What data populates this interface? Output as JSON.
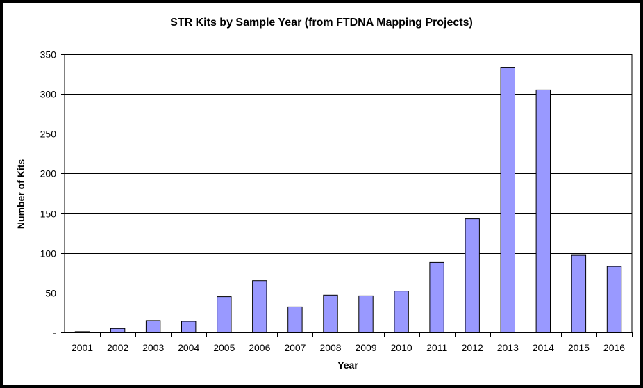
{
  "chart_data": {
    "type": "bar",
    "title": "STR Kits by Sample Year (from FTDNA Mapping Projects)",
    "xlabel": "Year",
    "ylabel": "Number of Kits",
    "categories": [
      "2001",
      "2002",
      "2003",
      "2004",
      "2005",
      "2006",
      "2007",
      "2008",
      "2009",
      "2010",
      "2011",
      "2012",
      "2013",
      "2014",
      "2015",
      "2016"
    ],
    "values": [
      1,
      5,
      15,
      14,
      45,
      65,
      32,
      47,
      46,
      52,
      88,
      143,
      333,
      305,
      97,
      83
    ],
    "ylim": [
      0,
      350
    ],
    "yticks": [
      0,
      50,
      100,
      150,
      200,
      250,
      300,
      350
    ],
    "ytick_labels": [
      "-",
      "50",
      "100",
      "150",
      "200",
      "250",
      "300",
      "350"
    ],
    "grid": true,
    "legend": "none",
    "colors": {
      "bar_fill": "#9999ff",
      "bar_stroke": "#000000",
      "gridline": "#000000",
      "frame": "#000000"
    }
  }
}
